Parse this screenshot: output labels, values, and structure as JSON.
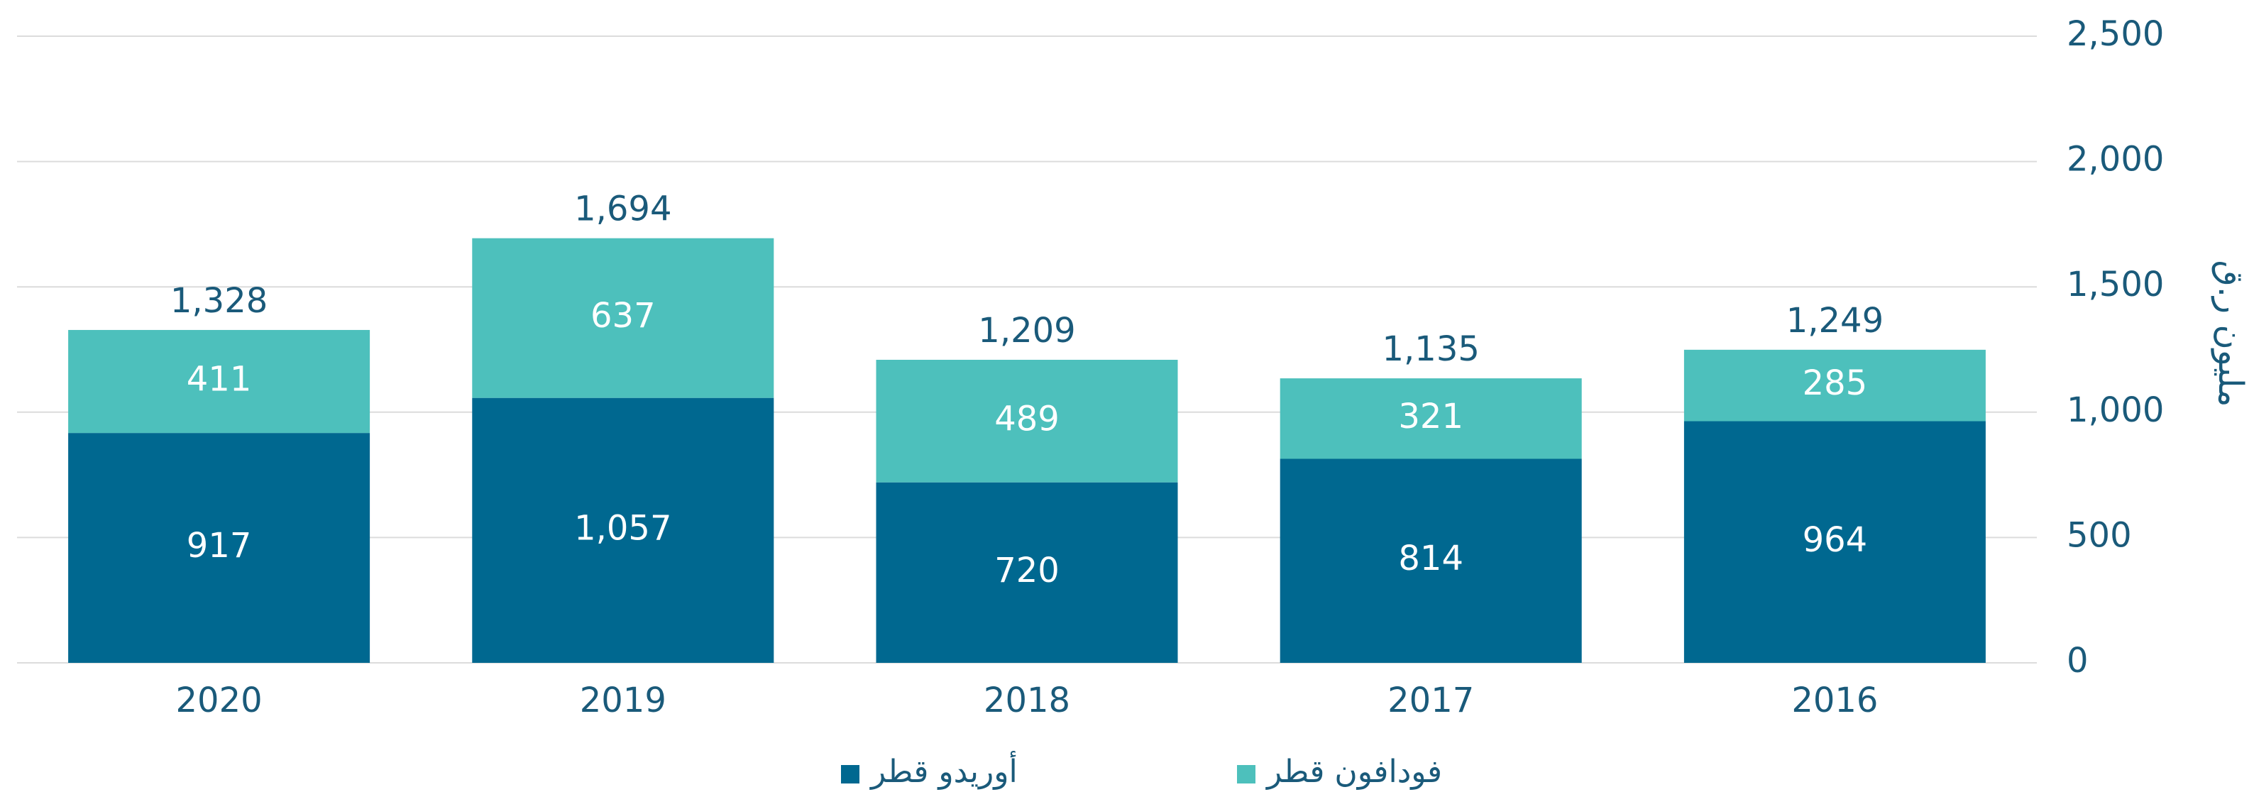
{
  "chart_data": {
    "type": "stacked_bar",
    "categories": [
      "2020",
      "2019",
      "2018",
      "2017",
      "2016"
    ],
    "series": [
      {
        "name": "أوريدو قطر",
        "color": "#006890",
        "values": [
          917,
          1057,
          720,
          814,
          964
        ],
        "value_labels": [
          "917",
          "1,057",
          "720",
          "814",
          "964"
        ]
      },
      {
        "name": "فودافون قطر",
        "color": "#4dc0bc",
        "values": [
          411,
          637,
          489,
          321,
          285
        ]
      }
    ],
    "totals": [
      1328,
      1694,
      1209,
      1135,
      1249
    ],
    "total_labels": [
      "1,328",
      "1,694",
      "1,209",
      "1,135",
      "1,249"
    ],
    "y_label": "مليون ر.ق",
    "ylim": [
      0,
      2500
    ],
    "yticks": [
      0,
      500,
      {
        "value": 1000,
        "label": "1,000"
      },
      {
        "value": 1500,
        "label": "1,500"
      },
      {
        "value": 2000,
        "label": "2,000"
      },
      {
        "value": 2500,
        "label": "2,500"
      }
    ],
    "grid": true,
    "legend": "bottom"
  }
}
